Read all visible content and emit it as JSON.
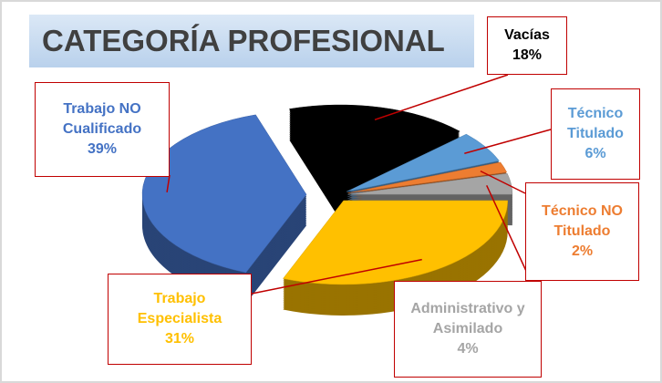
{
  "chart_data": {
    "type": "pie",
    "title": "CATEGORÍA PROFESIONAL",
    "categories": [
      "Vacías",
      "Técnico Titulado",
      "Técnico NO Titulado",
      "Administrativo y Asimilado",
      "Trabajo Especialista",
      "Trabajo NO Cualificado"
    ],
    "values": [
      18,
      6,
      2,
      4,
      31,
      39
    ],
    "value_labels": [
      "18%",
      "6%",
      "2%",
      "4%",
      "31%",
      "39%"
    ],
    "colors": [
      "#000000",
      "#5b9bd5",
      "#ed7d31",
      "#a5a5a5",
      "#ffc000",
      "#4472c4"
    ]
  }
}
